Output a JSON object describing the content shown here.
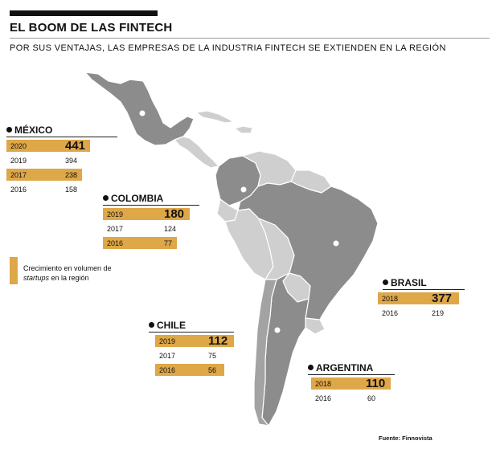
{
  "header": {
    "title": "EL BOOM DE LAS FINTECH",
    "subtitle": "POR SUS VENTAJAS, LAS EMPRESAS DE LA INDUSTRIA FINTECH SE EXTIENDEN EN LA REGIÓN"
  },
  "colors": {
    "highlight": "#dea748",
    "country_dark": "#8c8c8c",
    "country_light": "#cfcfcf",
    "ink": "#111111"
  },
  "countries": {
    "mexico": {
      "name": "MÉXICO",
      "rows": [
        {
          "year": "2020",
          "value": "441",
          "highlight": true
        },
        {
          "year": "2019",
          "value": "394",
          "highlight": false
        },
        {
          "year": "2017",
          "value": "238",
          "highlight": true
        },
        {
          "year": "2016",
          "value": "158",
          "highlight": false
        }
      ]
    },
    "colombia": {
      "name": "COLOMBIA",
      "rows": [
        {
          "year": "2019",
          "value": "180",
          "highlight": true
        },
        {
          "year": "2017",
          "value": "124",
          "highlight": false
        },
        {
          "year": "2016",
          "value": "77",
          "highlight": true
        }
      ]
    },
    "brasil": {
      "name": "BRASIL",
      "rows": [
        {
          "year": "2018",
          "value": "377",
          "highlight": true
        },
        {
          "year": "2016",
          "value": "219",
          "highlight": false
        }
      ]
    },
    "chile": {
      "name": "CHILE",
      "rows": [
        {
          "year": "2019",
          "value": "112",
          "highlight": true
        },
        {
          "year": "2017",
          "value": "75",
          "highlight": false
        },
        {
          "year": "2016",
          "value": "56",
          "highlight": true
        }
      ]
    },
    "argentina": {
      "name": "ARGENTINA",
      "rows": [
        {
          "year": "2018",
          "value": "110",
          "highlight": true
        },
        {
          "year": "2016",
          "value": "60",
          "highlight": false
        }
      ]
    }
  },
  "legend": {
    "text_line1": "Crecimiento en volumen de",
    "text_italic": "startups",
    "text_line2_rest": " en la región"
  },
  "source": "Fuente: Finnovista"
}
